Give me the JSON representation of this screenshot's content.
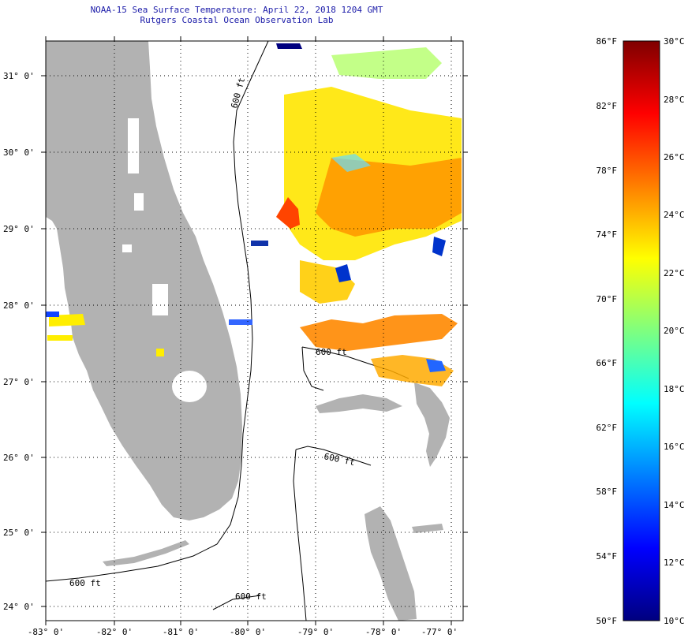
{
  "title": {
    "line1": "NOAA-15 Sea Surface Temperature:  April 22, 2018 1204 GMT",
    "line2": "Rutgers Coastal Ocean Observation Lab"
  },
  "axes": {
    "lat_labels": [
      "31° 0'",
      "30° 0'",
      "29° 0'",
      "28° 0'",
      "27° 0'",
      "26° 0'",
      "25° 0'",
      "24° 0'"
    ],
    "lon_labels": [
      "-83° 0'",
      "-82° 0'",
      "-81° 0'",
      "-80° 0'",
      "-79° 0'",
      "-78° 0'",
      "-77° 0'"
    ]
  },
  "contour_labels": [
    "600 ft",
    "600 ft",
    "600 ft",
    "600 ft",
    "600 ft"
  ],
  "colorbar": {
    "fahrenheit": [
      "86°F",
      "82°F",
      "78°F",
      "74°F",
      "70°F",
      "66°F",
      "62°F",
      "58°F",
      "54°F",
      "50°F"
    ],
    "celsius": [
      "30°C",
      "28°C",
      "26°C",
      "24°C",
      "22°C",
      "20°C",
      "18°C",
      "16°C",
      "14°C",
      "12°C",
      "10°C"
    ],
    "stops": [
      "#00007f",
      "#0000ff",
      "#007fff",
      "#00ffff",
      "#7fff7f",
      "#ffff00",
      "#ff7f00",
      "#ff0000",
      "#7f0000"
    ]
  },
  "colors": {
    "land": "#b2b2b2",
    "grid": "#000000",
    "title": "#1a1aa8"
  }
}
